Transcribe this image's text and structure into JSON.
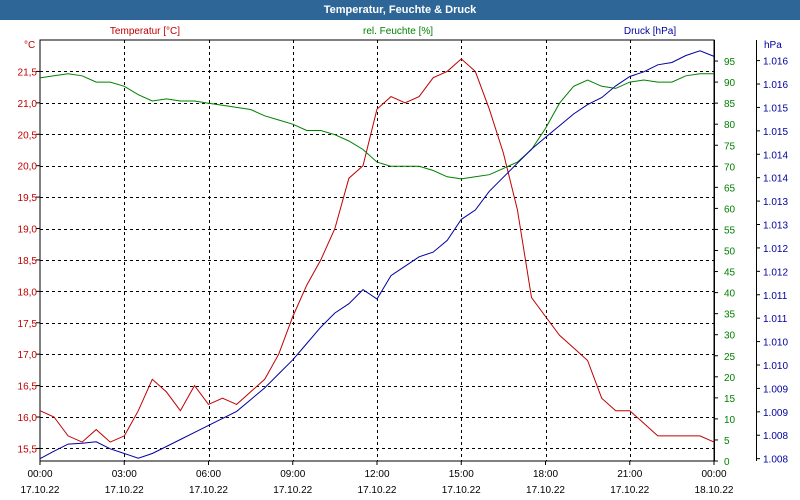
{
  "title": "Temperatur, Feuchte & Druck",
  "chart_data": {
    "type": "line",
    "title": "Temperatur, Feuchte & Druck",
    "x_ticks": [
      {
        "time": "00:00",
        "date": "17.10.22"
      },
      {
        "time": "03:00",
        "date": "17.10.22"
      },
      {
        "time": "06:00",
        "date": "17.10.22"
      },
      {
        "time": "09:00",
        "date": "17.10.22"
      },
      {
        "time": "12:00",
        "date": "17.10.22"
      },
      {
        "time": "15:00",
        "date": "17.10.22"
      },
      {
        "time": "18:00",
        "date": "17.10.22"
      },
      {
        "time": "21:00",
        "date": "17.10.22"
      },
      {
        "time": "00:00",
        "date": "18.10.22"
      }
    ],
    "xlim": [
      0,
      24
    ],
    "grid": true,
    "axes": {
      "temperature": {
        "name": "Temperatur [°C]",
        "unit": "°C",
        "color": "#c00000",
        "side": "left",
        "ylim": [
          15.3,
          22.0
        ],
        "ticks": [
          "15,5",
          "16,0",
          "16,5",
          "17,0",
          "17,5",
          "18,0",
          "18,5",
          "19,0",
          "19,5",
          "20,0",
          "20,5",
          "21,0",
          "21,5"
        ],
        "tick_values": [
          15.5,
          16.0,
          16.5,
          17.0,
          17.5,
          18.0,
          18.5,
          19.0,
          19.5,
          20.0,
          20.5,
          21.0,
          21.5
        ]
      },
      "humidity": {
        "name": "rel. Feuchte [%]",
        "unit": "%",
        "color": "#008000",
        "side": "right-inner",
        "ylim": [
          0,
          100
        ],
        "ticks": [
          "0",
          "5",
          "10",
          "15",
          "20",
          "25",
          "30",
          "35",
          "40",
          "45",
          "50",
          "55",
          "60",
          "65",
          "70",
          "75",
          "80",
          "85",
          "90",
          "95"
        ],
        "tick_values": [
          0,
          5,
          10,
          15,
          20,
          25,
          30,
          35,
          40,
          45,
          50,
          55,
          60,
          65,
          70,
          75,
          80,
          85,
          90,
          95
        ]
      },
      "pressure": {
        "name": "Druck [hPa]",
        "unit": "hPa",
        "color": "#0000a0",
        "side": "right-outer",
        "ylim": [
          1.00794,
          1.01693
        ],
        "ticks": [
          "1.008",
          "1.008",
          "1.009",
          "1.009",
          "1.010",
          "1.010",
          "1.011",
          "1.011",
          "1.012",
          "1.012",
          "1.013",
          "1.013",
          "1.014",
          "1.014",
          "1.015",
          "1.015",
          "1.016",
          "1.016"
        ],
        "tick_values": [
          1.00799,
          1.00849,
          1.00899,
          1.00949,
          1.00999,
          1.01049,
          1.01099,
          1.01149,
          1.01199,
          1.01249,
          1.01299,
          1.01349,
          1.01399,
          1.01449,
          1.01499,
          1.01549,
          1.01599,
          1.01649
        ]
      }
    },
    "series": [
      {
        "name": "Temperatur [°C]",
        "axis": "temperature",
        "color": "#c00000",
        "x": [
          0,
          0.5,
          1,
          1.5,
          2,
          2.5,
          3,
          3.5,
          4,
          4.5,
          5,
          5.5,
          6,
          6.5,
          7,
          7.5,
          8,
          8.5,
          9,
          9.5,
          10,
          10.5,
          11,
          11.5,
          12,
          12.5,
          13,
          13.5,
          14,
          14.5,
          15,
          15.5,
          16,
          16.5,
          17,
          17.5,
          18,
          18.5,
          19,
          19.5,
          20,
          20.5,
          21,
          21.5,
          22,
          22.5,
          23,
          23.5,
          24
        ],
        "values": [
          16.1,
          16.0,
          15.7,
          15.6,
          15.8,
          15.6,
          15.7,
          16.1,
          16.6,
          16.4,
          16.1,
          16.5,
          16.2,
          16.3,
          16.2,
          16.4,
          16.6,
          17.0,
          17.6,
          18.1,
          18.5,
          19.0,
          19.8,
          20.0,
          20.9,
          21.1,
          21.0,
          21.1,
          21.4,
          21.5,
          21.7,
          21.5,
          20.9,
          20.2,
          19.3,
          17.9,
          17.6,
          17.3,
          17.1,
          16.9,
          16.3,
          16.1,
          16.1,
          15.9,
          15.7,
          15.7,
          15.7,
          15.7,
          15.6
        ]
      },
      {
        "name": "rel. Feuchte [%]",
        "axis": "humidity",
        "color": "#008000",
        "x": [
          0,
          0.5,
          1,
          1.5,
          2,
          2.5,
          3,
          3.5,
          4,
          4.5,
          5,
          5.5,
          6,
          6.5,
          7,
          7.5,
          8,
          8.5,
          9,
          9.5,
          10,
          10.5,
          11,
          11.5,
          12,
          12.5,
          13,
          13.5,
          14,
          14.5,
          15,
          15.5,
          16,
          16.5,
          17,
          17.5,
          18,
          18.5,
          19,
          19.5,
          20,
          20.5,
          21,
          21.5,
          22,
          22.5,
          23,
          23.5,
          24
        ],
        "values": [
          91,
          91.5,
          92,
          91.5,
          90,
          90,
          89,
          87,
          85.5,
          86,
          85.5,
          85.5,
          85,
          84.5,
          84,
          83.5,
          82,
          81,
          80,
          78.5,
          78.5,
          77.5,
          76,
          74,
          71,
          70,
          70,
          70,
          69,
          67.5,
          67,
          67.5,
          68,
          69.5,
          71,
          74,
          79,
          85,
          89,
          90.5,
          89,
          88.5,
          90,
          90.5,
          90,
          90,
          91.5,
          92,
          92
        ]
      },
      {
        "name": "Druck [hPa]",
        "axis": "pressure",
        "color": "#0000a0",
        "x": [
          0,
          0.5,
          1,
          1.5,
          2,
          2.5,
          3,
          3.5,
          4,
          4.5,
          5,
          5.5,
          6,
          6.5,
          7,
          7.5,
          8,
          8.5,
          9,
          9.5,
          10,
          10.5,
          11,
          11.5,
          12,
          12.5,
          13,
          13.5,
          14,
          14.5,
          15,
          15.5,
          16,
          16.5,
          17,
          17.5,
          18,
          18.5,
          19,
          19.5,
          20,
          20.5,
          21,
          21.5,
          22,
          22.5,
          23,
          23.5,
          24
        ],
        "values": [
          1.00799,
          1.00815,
          1.0083,
          1.00832,
          1.00835,
          1.0082,
          1.0081,
          1.008,
          1.0081,
          1.00825,
          1.0084,
          1.00855,
          1.0087,
          1.00885,
          1.009,
          1.00925,
          1.0095,
          1.0098,
          1.0101,
          1.01045,
          1.0108,
          1.0111,
          1.0113,
          1.0116,
          1.0114,
          1.0119,
          1.0121,
          1.0123,
          1.0124,
          1.01265,
          1.0131,
          1.0133,
          1.0137,
          1.014,
          1.0143,
          1.0146,
          1.01485,
          1.0151,
          1.01535,
          1.01555,
          1.0157,
          1.01595,
          1.01615,
          1.01625,
          1.0164,
          1.01645,
          1.0166,
          1.0167,
          1.01658
        ]
      }
    ]
  }
}
